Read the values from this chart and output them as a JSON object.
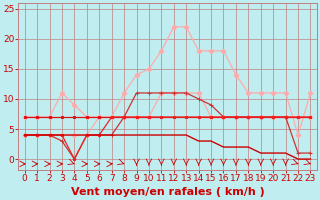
{
  "bg_color": "#c0eef0",
  "grid_color": "#c08080",
  "xlabel": "Vent moyen/en rafales ( km/h )",
  "xlabel_color": "#cc0000",
  "xlabel_fontsize": 8,
  "tick_color": "#cc0000",
  "tick_fontsize": 6.5,
  "xlim": [
    -0.5,
    23.5
  ],
  "ylim": [
    0,
    26
  ],
  "xticks": [
    0,
    1,
    2,
    3,
    4,
    5,
    6,
    7,
    8,
    9,
    10,
    11,
    12,
    13,
    14,
    15,
    16,
    17,
    18,
    19,
    20,
    21,
    22,
    23
  ],
  "yticks": [
    0,
    5,
    10,
    15,
    20,
    25
  ],
  "series": [
    {
      "color": "#ffaaaa",
      "lw": 0.9,
      "marker": "D",
      "ms": 2.5,
      "y": [
        4,
        4,
        4,
        4,
        4,
        4,
        7,
        7,
        11,
        14,
        15,
        18,
        22,
        22,
        18,
        18,
        18,
        14,
        11,
        11,
        11,
        11,
        4,
        11
      ]
    },
    {
      "color": "#ffaaaa",
      "lw": 0.9,
      "marker": "D",
      "ms": 2.5,
      "y": [
        7,
        7,
        7,
        11,
        9,
        7,
        7,
        7,
        7,
        7,
        7,
        11,
        11,
        11,
        11,
        7,
        7,
        7,
        7,
        7,
        7,
        7,
        7,
        7
      ]
    },
    {
      "color": "#cc3333",
      "lw": 0.9,
      "marker": "+",
      "ms": 3.5,
      "y": [
        4,
        4,
        4,
        3,
        0,
        4,
        4,
        4,
        7,
        11,
        11,
        11,
        11,
        11,
        10,
        9,
        7,
        7,
        7,
        7,
        7,
        7,
        1,
        1
      ]
    },
    {
      "color": "#dd1111",
      "lw": 0.9,
      "marker": "s",
      "ms": 2.0,
      "y": [
        7,
        7,
        7,
        7,
        7,
        7,
        7,
        7,
        7,
        7,
        7,
        7,
        7,
        7,
        7,
        7,
        7,
        7,
        7,
        7,
        7,
        7,
        7,
        7
      ]
    },
    {
      "color": "#ee2222",
      "lw": 0.9,
      "marker": "s",
      "ms": 2.0,
      "y": [
        4,
        4,
        4,
        4,
        0,
        4,
        4,
        7,
        7,
        7,
        7,
        7,
        7,
        7,
        7,
        7,
        7,
        7,
        7,
        7,
        7,
        7,
        7,
        7
      ]
    },
    {
      "color": "#cc0000",
      "lw": 1.0,
      "marker": "None",
      "ms": 0,
      "y": [
        4,
        4,
        4,
        4,
        4,
        4,
        4,
        4,
        4,
        4,
        4,
        4,
        4,
        4,
        3,
        3,
        2,
        2,
        2,
        1,
        1,
        1,
        0,
        0
      ]
    }
  ],
  "wind_arrows_x": [
    0,
    1,
    2,
    3,
    4,
    5,
    6,
    7,
    8,
    9,
    10,
    11,
    12,
    13,
    14,
    15,
    16,
    17,
    18,
    19,
    20,
    21,
    22,
    23
  ],
  "arrow_color": "#cc0000"
}
